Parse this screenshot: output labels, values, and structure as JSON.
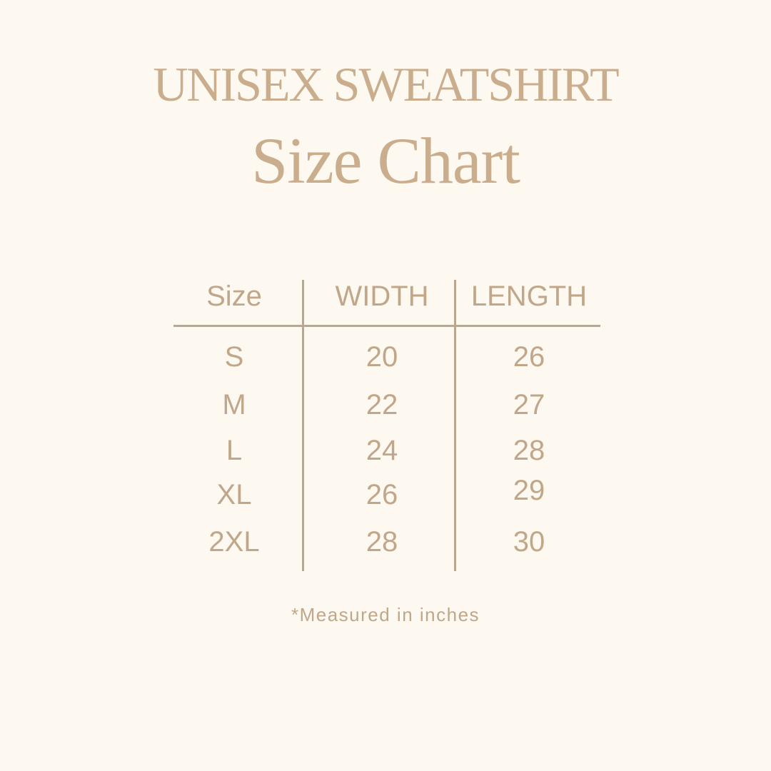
{
  "title": "UNISEX SWEATSHIRT",
  "subtitle": "Size Chart",
  "table": {
    "headers": [
      "Size",
      "WIDTH",
      "LENGTH"
    ],
    "rows": [
      [
        "S",
        "20",
        "26"
      ],
      [
        "M",
        "22",
        "27"
      ],
      [
        "L",
        "24",
        "28"
      ],
      [
        "XL",
        "26",
        "29"
      ],
      [
        "2XL",
        "28",
        "30"
      ]
    ]
  },
  "footnote": "*Measured in inches",
  "colors": {
    "background": "#fdf8f0",
    "text": "#c2a98c",
    "lines": "#bba690"
  }
}
